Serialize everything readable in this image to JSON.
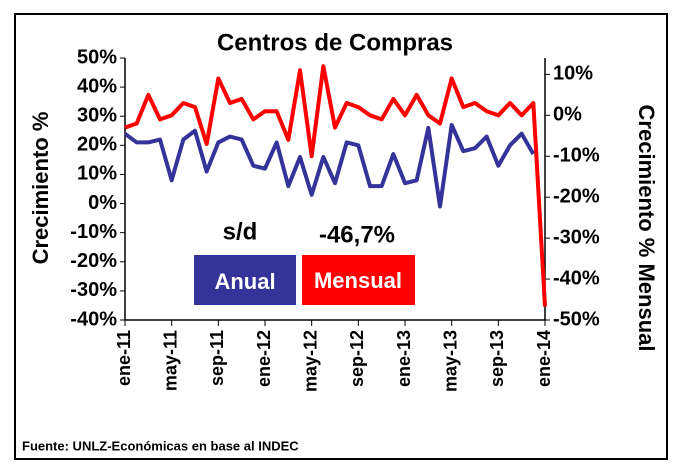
{
  "chart_data": {
    "type": "line",
    "title": "Centros de Compras",
    "y_label": "Crecimiento %",
    "y2_label": "Crecimiento % Mensual",
    "source": "Fuente: UNLZ-Económicas en base al INDEC",
    "annotations": [
      "s/d",
      "-46,7%"
    ],
    "categories": [
      "ene-11",
      null,
      null,
      null,
      "may-11",
      null,
      null,
      null,
      "sep-11",
      null,
      null,
      null,
      "ene-12",
      null,
      null,
      null,
      "may-12",
      null,
      null,
      null,
      "sep-12",
      null,
      null,
      null,
      "ene-13",
      null,
      null,
      null,
      "may-13",
      null,
      null,
      null,
      "sep-13",
      null,
      null,
      null,
      "ene-14"
    ],
    "series": [
      {
        "name": "Anual",
        "color": "#333399",
        "axis": "y",
        "values": [
          24,
          21,
          21,
          22,
          8,
          22,
          25,
          11,
          21,
          23,
          22,
          13,
          12,
          21,
          6,
          16,
          3,
          16,
          7,
          21,
          20,
          6,
          6,
          17,
          7,
          8,
          26,
          -1,
          27,
          18,
          19,
          23,
          13,
          20,
          24,
          17,
          null
        ]
      },
      {
        "name": "Mensual",
        "color": "#ff0000",
        "axis": "y2",
        "values": [
          -3,
          -2,
          5,
          -1,
          0,
          3,
          2,
          -7,
          9,
          3,
          4,
          -1,
          1,
          1,
          -6,
          11,
          -10,
          12,
          -3,
          3,
          2,
          0,
          -1,
          4,
          0,
          5,
          0,
          -2,
          9,
          2,
          3,
          1,
          0,
          3,
          0,
          3,
          -46.7
        ]
      }
    ],
    "ylim": [
      -40,
      50
    ],
    "yticks": [
      {
        "value": 50,
        "label": "50%"
      },
      {
        "value": 40,
        "label": "40%"
      },
      {
        "value": 30,
        "label": "30%"
      },
      {
        "value": 20,
        "label": "20%"
      },
      {
        "value": 10,
        "label": "10%"
      },
      {
        "value": 0,
        "label": "0%"
      },
      {
        "value": -10,
        "label": "-10%"
      },
      {
        "value": -20,
        "label": "-20%"
      },
      {
        "value": -30,
        "label": "-30%"
      },
      {
        "value": -40,
        "label": "-40%"
      }
    ],
    "y2lim": [
      -50,
      14
    ],
    "y2ticks": [
      {
        "value": 10,
        "label": "10%"
      },
      {
        "value": 0,
        "label": "0%"
      },
      {
        "value": -10,
        "label": "-10%"
      },
      {
        "value": -20,
        "label": "-20%"
      },
      {
        "value": -30,
        "label": "-30%"
      },
      {
        "value": -40,
        "label": "-40%"
      },
      {
        "value": -50,
        "label": "-50%"
      }
    ]
  }
}
